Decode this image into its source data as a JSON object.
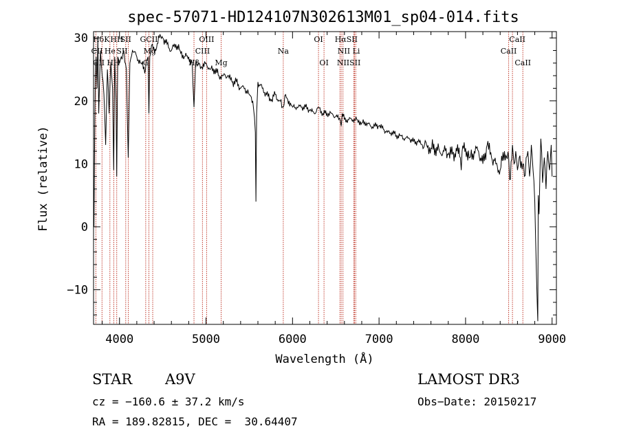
{
  "chart_data": {
    "type": "line",
    "title": "spec-57071-HD124107N302613M01_sp04-014.fits",
    "xlabel": "Wavelength (Å)",
    "ylabel": "Flux (relative)",
    "xlim": [
      3700,
      9050
    ],
    "ylim": [
      -15.5,
      31
    ],
    "xticks": [
      4000,
      5000,
      6000,
      7000,
      8000,
      9000
    ],
    "yticks": [
      -10,
      0,
      10,
      20,
      30
    ],
    "series": [
      {
        "name": "spectrum",
        "x": [
          3700,
          3705,
          3710,
          3720,
          3730,
          3740,
          3750,
          3760,
          3780,
          3800,
          3820,
          3840,
          3860,
          3880,
          3900,
          3920,
          3933,
          3945,
          3960,
          3968,
          3980,
          4000,
          4020,
          4050,
          4080,
          4101,
          4120,
          4150,
          4200,
          4250,
          4300,
          4330,
          4340,
          4350,
          4380,
          4420,
          4460,
          4500,
          4550,
          4600,
          4650,
          4700,
          4750,
          4800,
          4840,
          4861,
          4880,
          4920,
          4960,
          5000,
          5050,
          5100,
          5150,
          5200,
          5250,
          5300,
          5350,
          5400,
          5450,
          5500,
          5540,
          5570,
          5577,
          5585,
          5600,
          5650,
          5700,
          5750,
          5800,
          5850,
          5893,
          5920,
          5960,
          6000,
          6050,
          6100,
          6150,
          6200,
          6250,
          6300,
          6350,
          6400,
          6450,
          6500,
          6550,
          6563,
          6575,
          6600,
          6650,
          6700,
          6750,
          6800,
          6850,
          6900,
          6950,
          7000,
          7050,
          7100,
          7150,
          7200,
          7250,
          7300,
          7350,
          7400,
          7450,
          7500,
          7550,
          7600,
          7650,
          7700,
          7750,
          7800,
          7850,
          7900,
          7940,
          7950,
          7960,
          8000,
          8050,
          8100,
          8150,
          8200,
          8250,
          8300,
          8350,
          8400,
          8450,
          8498,
          8510,
          8542,
          8560,
          8580,
          8600,
          8620,
          8662,
          8680,
          8700,
          8720,
          8740,
          8760,
          8780,
          8800,
          8820,
          8830,
          8835,
          8840,
          8850,
          8870,
          8890,
          8910,
          8930,
          8950,
          8970,
          8990,
          9000
        ],
        "y": [
          3,
          0,
          10,
          24,
          27,
          22,
          30,
          18,
          28,
          24,
          21,
          13,
          25,
          18,
          26,
          22,
          9,
          27,
          20,
          8,
          27,
          26,
          27,
          28,
          25,
          11,
          26,
          28,
          27,
          26,
          25,
          27,
          18,
          27,
          29,
          28,
          30,
          30,
          29,
          28,
          29,
          28,
          27,
          27,
          26,
          19,
          26,
          26,
          25,
          26,
          25,
          25,
          24,
          24,
          24,
          23,
          23,
          22,
          22,
          21,
          20,
          15,
          4,
          18,
          23,
          22,
          21,
          20,
          21,
          20,
          19,
          21,
          20,
          19,
          19,
          19,
          19,
          18.5,
          18,
          19,
          18,
          18,
          18,
          17.5,
          17,
          16,
          18,
          17,
          17,
          17,
          17,
          16.5,
          16.5,
          16,
          16,
          16,
          15.5,
          15,
          15,
          14.5,
          14.5,
          14,
          14,
          13.5,
          13.5,
          13,
          13,
          12.5,
          12.5,
          12,
          12,
          11.5,
          11.5,
          12,
          11,
          9,
          12,
          12.5,
          11,
          12,
          12,
          10,
          13,
          11,
          10,
          9,
          12,
          11,
          7.5,
          13,
          10,
          12,
          9,
          11,
          10,
          8,
          11,
          12,
          8,
          13,
          9,
          4,
          -8,
          -13,
          -15,
          5,
          2,
          14,
          7,
          11,
          6,
          12,
          9,
          13,
          8
        ]
      }
    ],
    "line_markers": [
      {
        "label": "HδK",
        "x": 3790,
        "row": 1
      },
      {
        "label": "CII",
        "x": 3740,
        "row": 2
      },
      {
        "label": "CII",
        "x": 3760,
        "row": 3
      },
      {
        "label": "He",
        "x": 3890,
        "row": 2
      },
      {
        "label": "HH",
        "x": 3930,
        "row": 3
      },
      {
        "label": "HH",
        "x": 3970,
        "row": 1
      },
      {
        "label": "SII",
        "x": 4072,
        "row": 1
      },
      {
        "label": "SII",
        "x": 4030,
        "row": 2
      },
      {
        "label": "GCII",
        "x": 4340,
        "row": 1
      },
      {
        "label": "Mg",
        "x": 4350,
        "row": 2
      },
      {
        "label": "G",
        "x": 4305,
        "row": 3
      },
      {
        "label": "OIII",
        "x": 5007,
        "row": 1
      },
      {
        "label": "CIII",
        "x": 4960,
        "row": 2
      },
      {
        "label": "Hβ",
        "x": 4861,
        "row": 3
      },
      {
        "label": "Mg",
        "x": 5175,
        "row": 3
      },
      {
        "label": "Na",
        "x": 5893,
        "row": 2
      },
      {
        "label": "OI",
        "x": 6300,
        "row": 1
      },
      {
        "label": "OI",
        "x": 6364,
        "row": 3
      },
      {
        "label": "HαSII",
        "x": 6620,
        "row": 1
      },
      {
        "label": "NII Li",
        "x": 6650,
        "row": 2
      },
      {
        "label": "NIISII",
        "x": 6650,
        "row": 3
      },
      {
        "label": "CaII",
        "x": 8598,
        "row": 1
      },
      {
        "label": "CaII",
        "x": 8498,
        "row": 2
      },
      {
        "label": "CaII",
        "x": 8662,
        "row": 3
      }
    ],
    "marker_lines": [
      3727,
      3798,
      3889,
      3934,
      3968,
      4072,
      4102,
      4303,
      4340,
      4384,
      4861,
      4959,
      5007,
      5175,
      5893,
      6300,
      6364,
      6548,
      6563,
      6583,
      6708,
      6717,
      6731,
      8498,
      8542,
      8662
    ]
  },
  "info": {
    "object_type": "STAR",
    "subclass": "A9V",
    "survey": "LAMOST DR3",
    "redshift": "cz = −160.6 ± 37.2 km/s",
    "obs_date": "Obs−Date: 20150217",
    "coords": "RA = 189.82815, DEC =  30.64407"
  },
  "colors": {
    "marker_line": "#c0392b",
    "spectrum": "#000000"
  }
}
